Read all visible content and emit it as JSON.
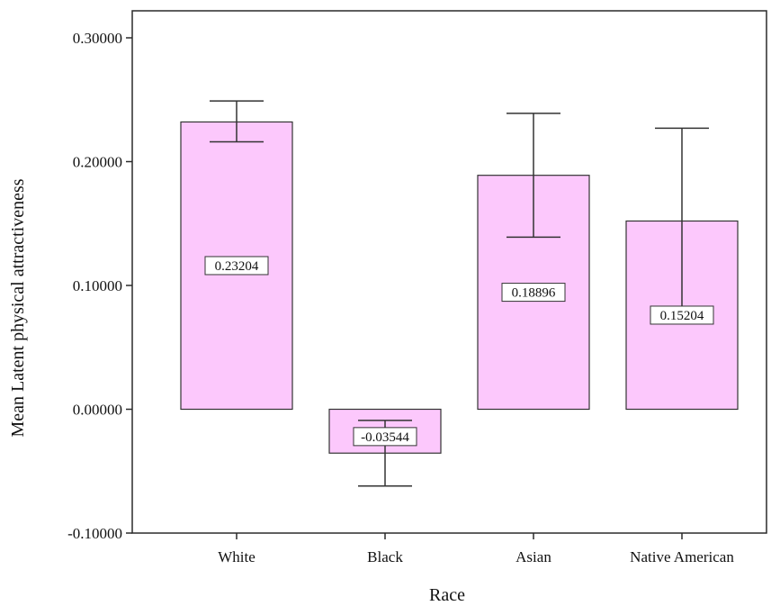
{
  "chart_data": {
    "type": "bar",
    "xlabel": "Race",
    "ylabel": "Mean Latent physical attractiveness",
    "categories": [
      "White",
      "Black",
      "Asian",
      "Native American"
    ],
    "values": [
      0.23204,
      -0.03544,
      0.18896,
      0.15204
    ],
    "value_labels": [
      "0.23204",
      "-0.03544",
      "0.18896",
      "0.15204"
    ],
    "error_bars": [
      {
        "low": 0.216,
        "high": 0.249
      },
      {
        "low": -0.062,
        "high": -0.009
      },
      {
        "low": 0.139,
        "high": 0.239
      },
      {
        "low": 0.077,
        "high": 0.227
      }
    ],
    "ylim": [
      -0.1,
      0.3
    ],
    "yticks": [
      -0.1,
      0.0,
      0.1,
      0.2,
      0.3
    ],
    "ytick_labels": [
      "-0.10000",
      "0.00000",
      "0.10000",
      "0.20000",
      "0.30000"
    ],
    "bar_color": "#fcc8fc",
    "grid": false
  }
}
